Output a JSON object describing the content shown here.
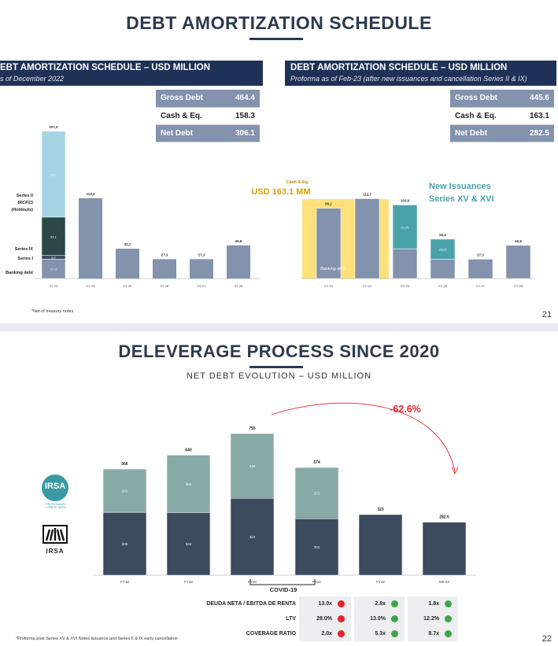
{
  "slide1": {
    "title": "DEBT AMORTIZATION SCHEDULE",
    "page_number": "21",
    "footnote": "*Net of treasury notes",
    "left": {
      "header_title": "EBT AMORTIZATION SCHEDULE – USD MILLION",
      "header_subtitle": "s of December 2022",
      "summary": [
        {
          "label": "Gross Debt",
          "value": "464.4"
        },
        {
          "label": "Cash & Eq.",
          "value": "158.3"
        },
        {
          "label": "Net Debt",
          "value": "306.1"
        }
      ]
    },
    "right": {
      "header_title": "DEBT AMORTIZATION SCHEDULE – USD MILLION",
      "header_subtitle": "Proforma as of Feb-23 (after new issuances and cancellation Series II & IX)",
      "summary": [
        {
          "label": "Gross Debt",
          "value": "445.6"
        },
        {
          "label": "Cash & Eq.",
          "value": "163.1"
        },
        {
          "label": "Net Debt",
          "value": "282.5"
        }
      ],
      "cash_small_label": "Cash & Eq.",
      "cash_big_label": "USD 163.1 MM",
      "new_issuances_line1": "New Issuances",
      "new_issuances_line2": "Series XV & XVI"
    }
  },
  "slide2": {
    "title": "DELEVERAGE PROCESS SINCE 2020",
    "subtitle": "NET DEBT EVOLUTION – USD MILLION",
    "page_number": "22",
    "footnote": "*Proforma post Series XV & XVI Notes issuance and Series II & IX early cancellation",
    "change_label": "-62.6%",
    "covid_label": "COVID-19",
    "logo1_text": "IRSA",
    "logo1_sub1": "PROPIEDADES",
    "logo1_sub2": "COMERCIALES",
    "logo2_text": "IRSA",
    "ratios": [
      {
        "label": "DEUDA NETA / EBITDA DE RENTA",
        "values": [
          "13.0x",
          "2.8x",
          "1.8x"
        ]
      },
      {
        "label": "LTV",
        "values": [
          "28.0%",
          "13.0%",
          "12.2%"
        ]
      },
      {
        "label": "COVERAGE RATIO",
        "values": [
          "2.0x",
          "5.3x",
          "8.7x"
        ]
      }
    ],
    "ratio_status": [
      [
        "red",
        "green",
        "green"
      ],
      [
        "red",
        "green",
        "green"
      ],
      [
        "red",
        "green",
        "green"
      ]
    ]
  },
  "colors": {
    "navy": "#1f3156",
    "slate": "#3d4b5e",
    "steel": "#8392ad",
    "light_blue": "#a6d3e4",
    "dark_teal": "#2c4747",
    "teal": "#4aa3ab",
    "sage": "#87aaa6",
    "yellow": "#ffe07a",
    "red": "#e8202a",
    "green": "#3fa54a"
  },
  "chart_data": [
    {
      "type": "bar",
      "stacked": true,
      "title": "DEBT AMORTIZATION SCHEDULE – USD MILLION (as of December 2022)",
      "categories": [
        "FY 23",
        "FY 24",
        "FY 25",
        "FY 26",
        "FY 27",
        "FY 28"
      ],
      "totals": [
        "207,6",
        "113,3",
        "42,1",
        "27,3",
        "27,3",
        "46,8"
      ],
      "series": [
        {
          "name": "Banking debt",
          "values": [
            27.4,
            113.3,
            42.1,
            27.3,
            27.3,
            46.8
          ],
          "label": "27,4"
        },
        {
          "name": "Series I",
          "values": [
            5.2,
            0,
            0,
            0,
            0,
            0
          ],
          "label": "5,2"
        },
        {
          "name": "Series IX",
          "values": [
            54.1,
            0,
            0,
            0,
            0,
            0
          ],
          "label": "54,1"
        },
        {
          "name": "Series II IRCP23 (Holdouts)",
          "values": [
            121,
            0,
            0,
            0,
            0,
            0
          ],
          "label": "121"
        }
      ],
      "legend_labels": [
        "Series II",
        "IRCP23",
        "(Holdouts)",
        "Series IX",
        "Series I",
        "Banking debt"
      ],
      "ylim": [
        0,
        220
      ]
    },
    {
      "type": "bar",
      "stacked": true,
      "title": "DEBT AMORTIZATION SCHEDULE – USD MILLION (Proforma as of Feb-23)",
      "categories": [
        "FY 23",
        "FY 24",
        "FY 25",
        "FY 26",
        "FY 27",
        "FY 28"
      ],
      "totals": [
        "99,2",
        "112,7",
        "103,9",
        "55,6",
        "27,3",
        "46,8"
      ],
      "series": [
        {
          "name": "Banking debt",
          "values": [
            99.2,
            112.7,
            42.1,
            27.3,
            27.3,
            46.8
          ]
        },
        {
          "name": "New Issuances Series XV & XVI",
          "values": [
            0,
            0,
            61.75,
            28.25,
            0,
            0
          ],
          "labels": [
            "",
            "",
            "61,75",
            "28,25",
            "",
            ""
          ]
        }
      ],
      "inner_label": "Banking debt",
      "highlight": "Cash & Eq. USD 163.1 MM",
      "ylim": [
        0,
        220
      ]
    },
    {
      "type": "bar",
      "stacked": true,
      "title": "NET DEBT EVOLUTION – USD MILLION",
      "categories": [
        "FY18",
        "FY19",
        "FY20",
        "FY21",
        "FY22",
        "feb-23"
      ],
      "totals": [
        "566",
        "640",
        "755",
        "574",
        "323",
        "282.5"
      ],
      "series": [
        {
          "name": "Base",
          "values": [
            335,
            334,
            410,
            301,
            323,
            282.5
          ],
          "labels": [
            "335",
            "334",
            "410",
            "301",
            "",
            ""
          ]
        },
        {
          "name": "Upper",
          "values": [
            231,
            306,
            345,
            273,
            0,
            0
          ],
          "labels": [
            "231",
            "306",
            "345",
            "273",
            "",
            ""
          ]
        }
      ],
      "annotation": "-62.6%",
      "ylim": [
        0,
        800
      ]
    }
  ]
}
